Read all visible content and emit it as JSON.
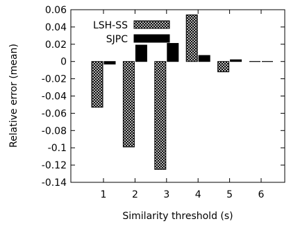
{
  "chart_data": {
    "type": "bar",
    "title": "",
    "xlabel": "Similarity threshold (s)",
    "ylabel": "Relative error (mean)",
    "categories": [
      "1",
      "2",
      "3",
      "4",
      "5",
      "6"
    ],
    "ylim": [
      -0.14,
      0.06
    ],
    "yticks": [
      "0.06",
      "0.04",
      "0.02",
      "0",
      "-0.02",
      "-0.04",
      "-0.06",
      "-0.08",
      "-0.1",
      "-0.12",
      "-0.14"
    ],
    "grid": false,
    "legend_position": "top-left",
    "series": [
      {
        "name": "LSH-SS",
        "values": [
          -0.053,
          -0.099,
          -0.125,
          0.054,
          -0.012,
          0.0
        ],
        "pattern": "crosshatch"
      },
      {
        "name": "SJPC",
        "values": [
          -0.003,
          0.019,
          0.021,
          0.007,
          0.002,
          0.0
        ],
        "pattern": "solid"
      }
    ],
    "colors": {
      "fill": "#000000",
      "hatch_bg": "#ffffff",
      "axis": "#000000"
    }
  }
}
